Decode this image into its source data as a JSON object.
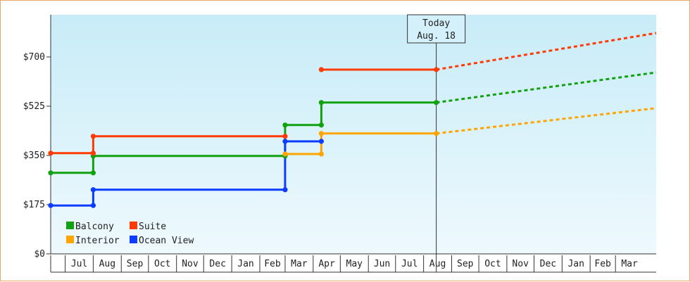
{
  "chart_data": {
    "type": "line",
    "title": "",
    "xlabel": "",
    "ylabel": "",
    "ylim": [
      0,
      850
    ],
    "y_ticks": [
      "$0",
      "$175",
      "$350",
      "$525",
      "$700"
    ],
    "y_tick_values": [
      0,
      175,
      350,
      525,
      700
    ],
    "x_month_labels": [
      "Jul",
      "Aug",
      "Sep",
      "Oct",
      "Nov",
      "Dec",
      "Jan",
      "Feb",
      "Mar",
      "Apr",
      "May",
      "Jun",
      "Jul",
      "Aug",
      "Sep",
      "Oct",
      "Nov",
      "Dec",
      "Jan",
      "Feb",
      "Mar"
    ],
    "x_range": [
      "2017-06-15",
      "2019-04-15"
    ],
    "step_interpolation": true,
    "grid": false,
    "legend_position": "bottom-left",
    "today": {
      "label_line1": "Today",
      "label_line2": "Aug. 18",
      "date": "2018-08-15"
    },
    "series": [
      {
        "name": "Balcony",
        "color": "#11a111",
        "points": [
          [
            "2017-06-15",
            288
          ],
          [
            "2017-08-01",
            288
          ],
          [
            "2017-08-01",
            348
          ],
          [
            "2018-03-01",
            348
          ],
          [
            "2018-03-01",
            458
          ],
          [
            "2018-04-10",
            458
          ],
          [
            "2018-04-10",
            538
          ],
          [
            "2018-08-15",
            538
          ]
        ],
        "forecast": [
          [
            "2018-08-15",
            538
          ],
          [
            "2019-04-15",
            645
          ]
        ]
      },
      {
        "name": "Suite",
        "color": "#ff3b05",
        "points": [
          [
            "2017-06-15",
            358
          ],
          [
            "2017-08-01",
            358
          ],
          [
            "2017-08-01",
            418
          ],
          [
            "2018-03-01",
            418
          ]
        ],
        "points_b": [
          [
            "2018-04-10",
            655
          ],
          [
            "2018-08-15",
            655
          ]
        ],
        "forecast": [
          [
            "2018-08-15",
            655
          ],
          [
            "2019-04-15",
            785
          ]
        ]
      },
      {
        "name": "Interior",
        "color": "#ffa500",
        "points": [
          [
            "2018-03-01",
            355
          ],
          [
            "2018-04-10",
            355
          ],
          [
            "2018-04-10",
            428
          ],
          [
            "2018-08-15",
            428
          ]
        ],
        "forecast": [
          [
            "2018-08-15",
            428
          ],
          [
            "2019-04-15",
            518
          ]
        ]
      },
      {
        "name": "Ocean View",
        "color": "#0b3cff",
        "points": [
          [
            "2017-06-15",
            172
          ],
          [
            "2017-08-01",
            172
          ],
          [
            "2017-08-01",
            228
          ],
          [
            "2018-03-01",
            228
          ],
          [
            "2018-03-01",
            400
          ],
          [
            "2018-04-10",
            400
          ]
        ]
      }
    ]
  }
}
